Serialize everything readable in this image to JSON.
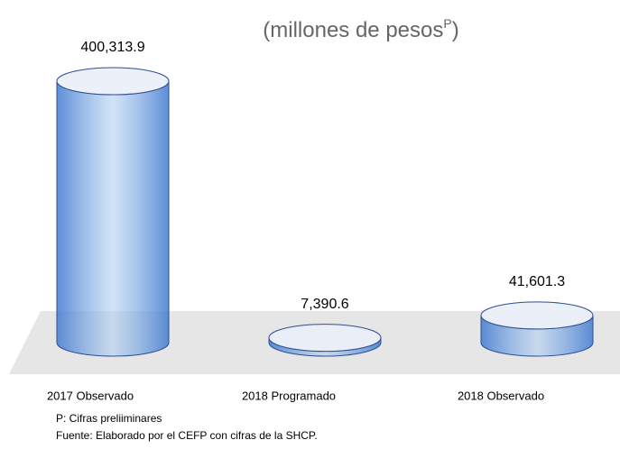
{
  "chart_data": {
    "type": "cylinder",
    "title": [
      "(millones de pesos",
      "P",
      ")"
    ],
    "categories": [
      "2017 Observado",
      "2018 Programado",
      "2018 Observado"
    ],
    "values": [
      400313.9,
      7390.6,
      41601.3
    ],
    "value_labels": [
      "400,313.9",
      "7,390.6",
      "41,601.3"
    ],
    "color": "#4a86d8",
    "notes": [
      "P: Cifras preliiminares",
      "Fuente: Elaborado por el CEFP con cifras de la SHCP."
    ]
  }
}
